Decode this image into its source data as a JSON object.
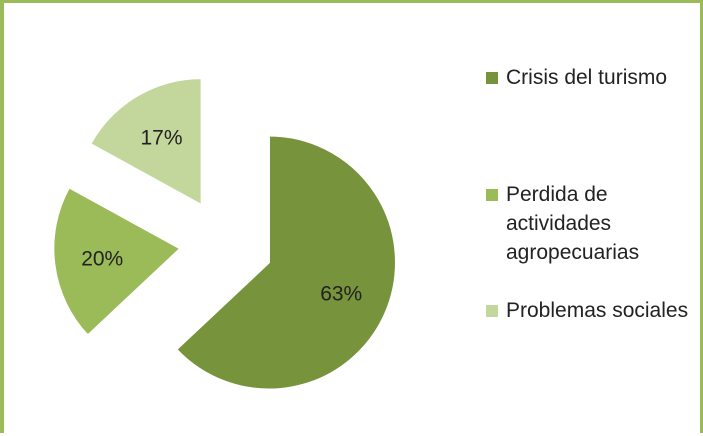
{
  "chart_data": {
    "type": "pie",
    "exploded": true,
    "series": [
      {
        "name": "Crisis del turismo",
        "value": 63,
        "label": "63%",
        "color": "#77933c"
      },
      {
        "name": "Perdida de actividades agropecuarias",
        "value": 20,
        "label": "20%",
        "color": "#9bbb59"
      },
      {
        "name": "Problemas sociales",
        "value": 17,
        "label": "17%",
        "color": "#c3d69b"
      }
    ],
    "legend_position": "right",
    "border_color": "#9bbb59"
  }
}
